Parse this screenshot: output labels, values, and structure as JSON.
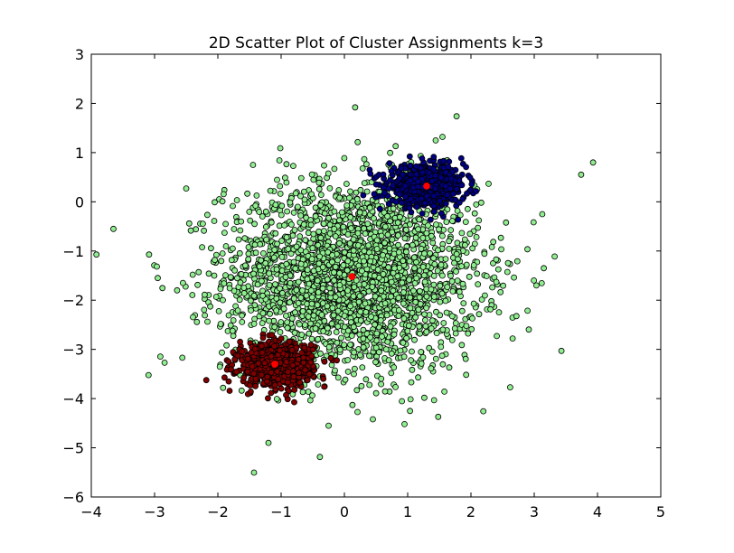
{
  "chart_data": {
    "type": "scatter",
    "title": "2D Scatter Plot of Cluster Assignments k=3",
    "xlabel": "",
    "ylabel": "",
    "xlim": [
      -4,
      5
    ],
    "ylim": [
      -6,
      3
    ],
    "x_ticks": [
      "−4",
      "−3",
      "−2",
      "−1",
      "0",
      "1",
      "2",
      "3",
      "4",
      "5"
    ],
    "y_ticks": [
      "3",
      "2",
      "1",
      "0",
      "−1",
      "−2",
      "−3",
      "−4",
      "−5",
      "−6"
    ],
    "grid": false,
    "legend": "none",
    "series": [
      {
        "color": "#90ee90",
        "description": "diffuse cluster",
        "center": [
          0.12,
          -1.52
        ],
        "spread": [
          1.0,
          0.95
        ],
        "count": 2600,
        "outliers": [
          [
            -3.65,
            -0.55
          ],
          [
            3.93,
            0.8
          ],
          [
            0.17,
            1.92
          ],
          [
            -1.2,
            -4.9
          ],
          [
            3.43,
            -3.03
          ],
          [
            -2.95,
            -1.55
          ],
          [
            -2.5,
            0.27
          ],
          [
            0.45,
            -4.42
          ],
          [
            2.62,
            -3.77
          ],
          [
            1.55,
            1.32
          ],
          [
            -0.25,
            -4.55
          ],
          [
            0.95,
            -4.52
          ]
        ]
      },
      {
        "color": "#000080",
        "description": "upper-right cluster",
        "center": [
          1.3,
          0.32
        ],
        "spread": [
          0.3,
          0.2
        ],
        "count": 700
      },
      {
        "color": "#800000",
        "description": "lower-left cluster",
        "center": [
          -1.1,
          -3.3
        ],
        "spread": [
          0.3,
          0.22
        ],
        "count": 700
      }
    ],
    "centroids": {
      "color": "#ff0000",
      "points": [
        [
          0.12,
          -1.52
        ],
        [
          1.3,
          0.32
        ],
        [
          -1.1,
          -3.3
        ]
      ]
    }
  }
}
